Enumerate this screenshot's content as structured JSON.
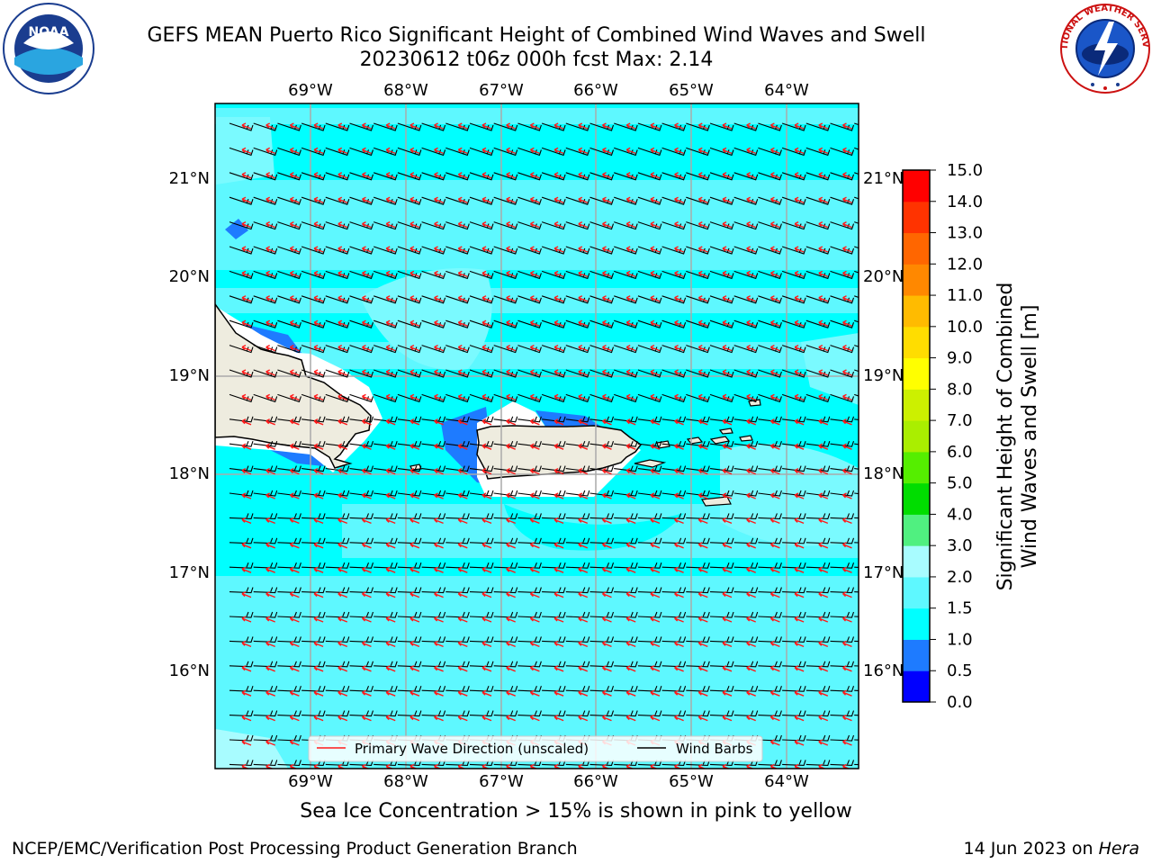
{
  "title_line1": "GEFS MEAN Puerto Rico Significant Height of Combined Wind Waves and Swell",
  "title_line2": "20230612 t06z 000h fcst   Max: 2.14",
  "map": {
    "lon_labels": [
      "69°W",
      "68°W",
      "67°W",
      "66°W",
      "65°W",
      "64°W"
    ],
    "lat_labels": [
      "21°N",
      "20°N",
      "19°N",
      "18°N",
      "17°N",
      "16°N"
    ],
    "land_color": "#eeecdf",
    "ocean_color": "#00ffff",
    "band_color": "#5ef8ff",
    "shallow_color": "#1e7bff",
    "arrow_color": "#ff1a1a",
    "barb_color": "#000000"
  },
  "legend": {
    "wave_label": "Primary Wave Direction (unscaled)",
    "barb_label": "Wind Barbs"
  },
  "colorbar": {
    "label_line1": "Significant Height of Combined",
    "label_line2": "Wind Waves and Swell [m]",
    "ticks": [
      "0.0",
      "0.5",
      "1.0",
      "1.5",
      "2.0",
      "3.0",
      "4.0",
      "5.0",
      "6.0",
      "7.0",
      "8.0",
      "9.0",
      "10.0",
      "11.0",
      "12.0",
      "13.0",
      "14.0",
      "15.0"
    ],
    "colors": [
      "#0000ff",
      "#1e7bff",
      "#00ffff",
      "#5ef8ff",
      "#a8fcff",
      "#50f080",
      "#00dd00",
      "#55ee00",
      "#aaee00",
      "#ccf000",
      "#ffff00",
      "#ffdd00",
      "#ffbb00",
      "#ff8800",
      "#ff6600",
      "#ff3300",
      "#ff0000"
    ]
  },
  "subnote": "Sea Ice Concentration > 15% is shown in pink to yellow",
  "footer_left": "NCEP/EMC/Verification Post Processing Product Generation Branch",
  "footer_right_date": "14 Jun 2023 on ",
  "footer_right_machine": "Hera",
  "logos": {
    "noaa_text": "NOAA",
    "nws_text": "NATIONAL WEATHER SERVICE"
  }
}
